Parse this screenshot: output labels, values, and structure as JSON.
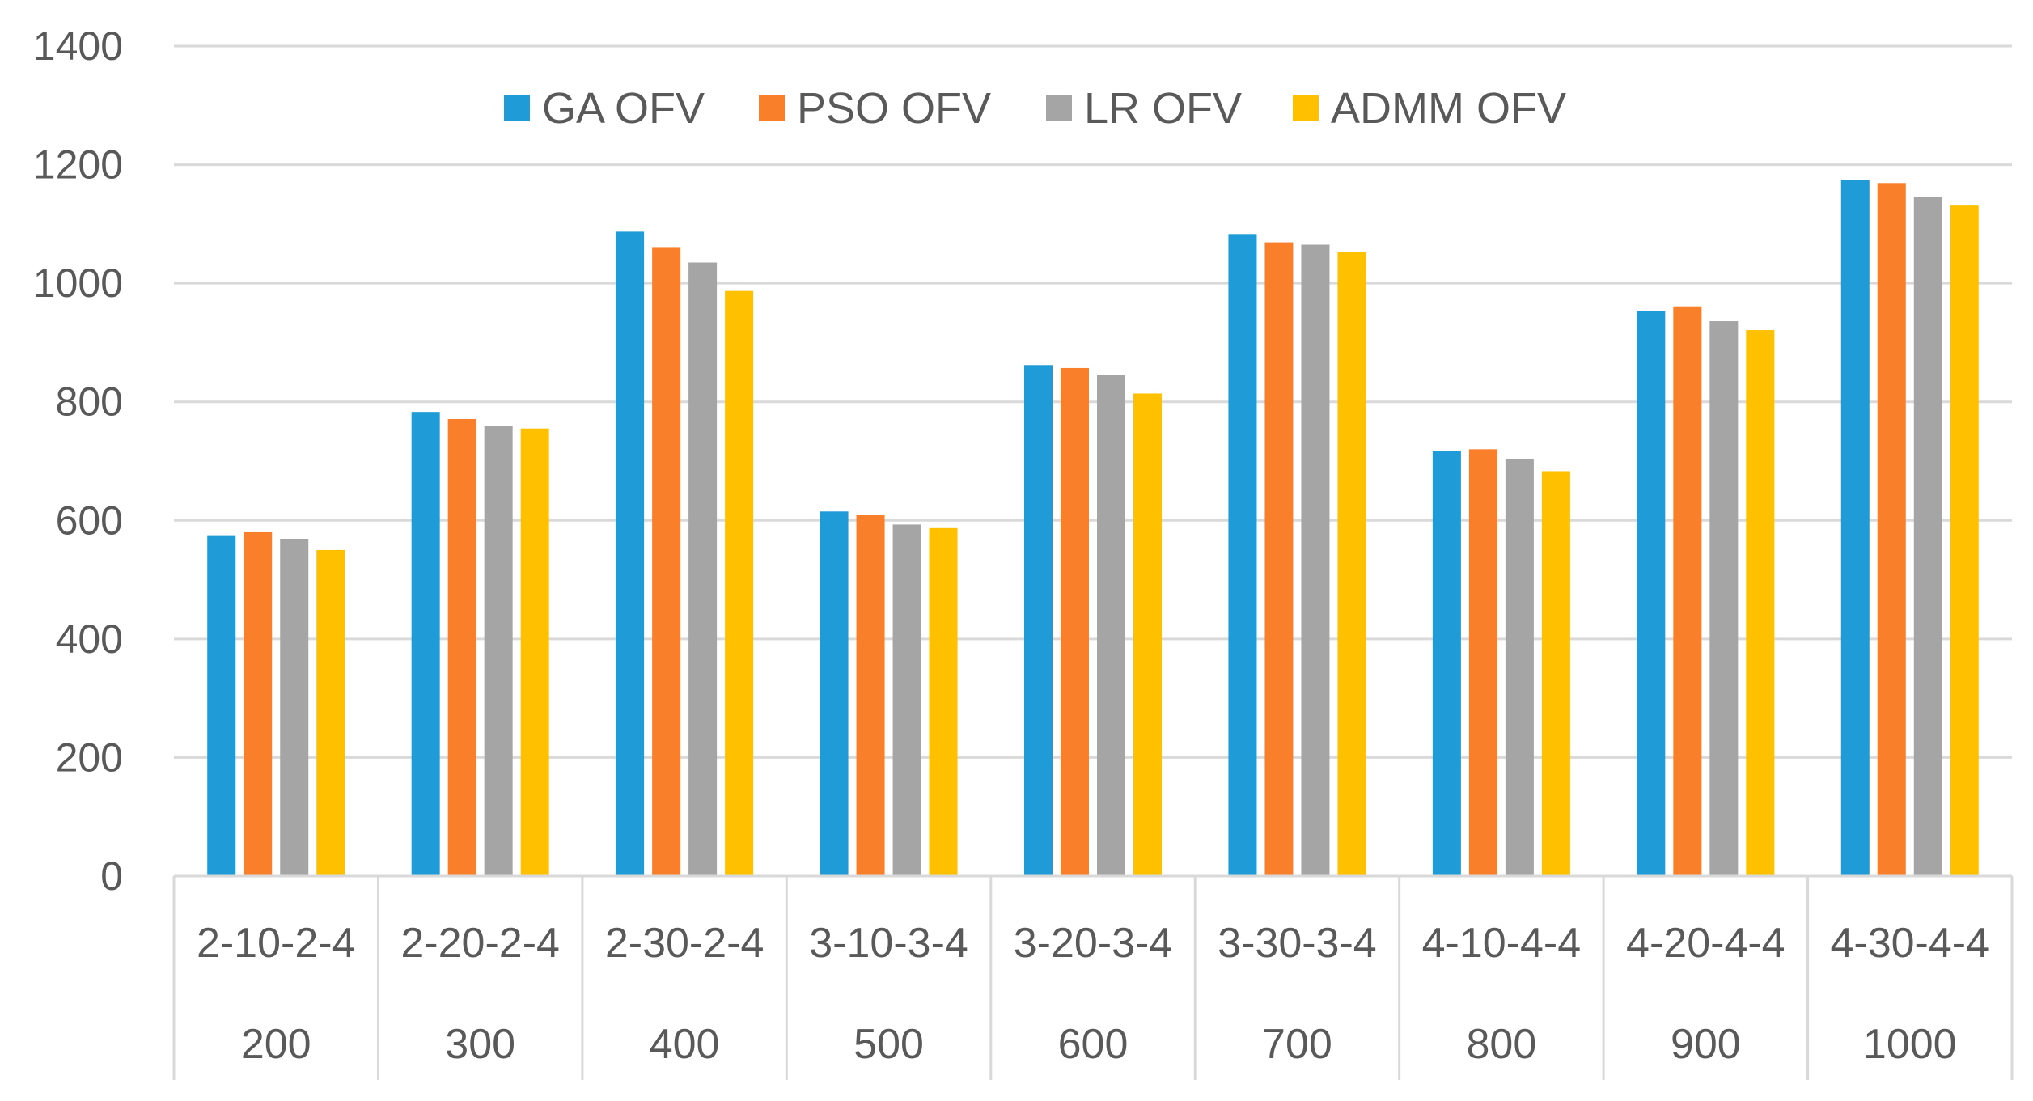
{
  "chart_data": {
    "type": "bar",
    "title": "",
    "xlabel": "",
    "ylabel": "",
    "ylim": [
      0,
      1400
    ],
    "yticks": [
      0,
      200,
      400,
      600,
      800,
      1000,
      1200,
      1400
    ],
    "grid": true,
    "legend_position": "top-center",
    "categories": [
      {
        "config": "2-10-2-4",
        "size": "200"
      },
      {
        "config": "2-20-2-4",
        "size": "300"
      },
      {
        "config": "2-30-2-4",
        "size": "400"
      },
      {
        "config": "3-10-3-4",
        "size": "500"
      },
      {
        "config": "3-20-3-4",
        "size": "600"
      },
      {
        "config": "3-30-3-4",
        "size": "700"
      },
      {
        "config": "4-10-4-4",
        "size": "800"
      },
      {
        "config": "4-20-4-4",
        "size": "900"
      },
      {
        "config": "4-30-4-4",
        "size": "1000"
      }
    ],
    "series": [
      {
        "name": "GA OFV",
        "color": "#1f9bd7",
        "values": [
          575,
          783,
          1087,
          615,
          862,
          1083,
          717,
          953,
          1174
        ]
      },
      {
        "name": "PSO OFV",
        "color": "#f97f2a",
        "values": [
          580,
          771,
          1061,
          609,
          857,
          1069,
          720,
          961,
          1169
        ]
      },
      {
        "name": "LR OFV",
        "color": "#a5a5a5",
        "values": [
          569,
          760,
          1035,
          593,
          845,
          1065,
          703,
          936,
          1146
        ]
      },
      {
        "name": "ADMM OFV",
        "color": "#ffc000",
        "values": [
          550,
          755,
          987,
          587,
          814,
          1053,
          683,
          921,
          1131
        ]
      }
    ]
  }
}
